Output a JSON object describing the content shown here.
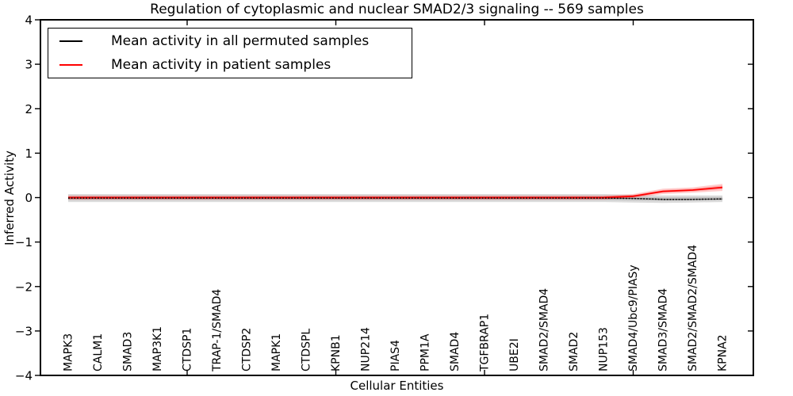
{
  "chart_data": {
    "type": "line",
    "title": "Regulation of cytoplasmic and nuclear SMAD2/3 signaling -- 569 samples",
    "xlabel": "Cellular Entities",
    "ylabel": "Inferred Activity",
    "ylim": [
      -4,
      4
    ],
    "yticks": [
      4,
      3,
      2,
      1,
      0,
      -1,
      -2,
      -3,
      -4
    ],
    "grid": false,
    "legend_position": "upper left",
    "top_axis_tick_indices": [
      4,
      9,
      14,
      19
    ],
    "categories": [
      "MAPK3",
      "CALM1",
      "SMAD3",
      "MAP3K1",
      "CTDSP1",
      "TRAP-1/SMAD4",
      "CTDSP2",
      "MAPK1",
      "CTDSPL",
      "KPNB1",
      "NUP214",
      "PIAS4",
      "PPM1A",
      "SMAD4",
      "TGFBRAP1",
      "UBE2I",
      "SMAD2/SMAD4",
      "SMAD2",
      "NUP153",
      "SMAD4/Ubc9/PIASy",
      "SMAD3/SMAD4",
      "SMAD2/SMAD2/SMAD4",
      "KPNA2"
    ],
    "series": [
      {
        "name": "Mean activity in all permuted samples",
        "color": "#000000",
        "style": "dotted",
        "band_color": "rgba(128,128,128,0.28)",
        "values": [
          -0.01,
          -0.01,
          -0.01,
          -0.01,
          -0.01,
          -0.01,
          -0.01,
          -0.01,
          -0.01,
          -0.01,
          -0.01,
          -0.01,
          -0.01,
          -0.01,
          -0.01,
          -0.01,
          -0.01,
          -0.01,
          -0.01,
          -0.02,
          -0.04,
          -0.04,
          -0.03
        ],
        "band_upper": [
          0.08,
          0.08,
          0.08,
          0.08,
          0.08,
          0.08,
          0.08,
          0.08,
          0.08,
          0.08,
          0.08,
          0.08,
          0.08,
          0.08,
          0.08,
          0.08,
          0.08,
          0.08,
          0.08,
          0.06,
          0.05,
          0.05,
          0.05
        ],
        "band_lower": [
          -0.1,
          -0.1,
          -0.1,
          -0.1,
          -0.1,
          -0.1,
          -0.1,
          -0.1,
          -0.1,
          -0.1,
          -0.1,
          -0.1,
          -0.1,
          -0.1,
          -0.1,
          -0.1,
          -0.1,
          -0.1,
          -0.1,
          -0.11,
          -0.12,
          -0.11,
          -0.1
        ]
      },
      {
        "name": "Mean activity in patient samples",
        "color": "#ff0000",
        "style": "solid",
        "band_color": "rgba(255,0,0,0.20)",
        "values": [
          0.0,
          0.0,
          0.0,
          0.0,
          0.0,
          0.0,
          0.0,
          0.0,
          0.0,
          0.0,
          0.0,
          0.0,
          0.0,
          0.0,
          0.0,
          0.0,
          0.0,
          0.0,
          0.0,
          0.03,
          0.14,
          0.17,
          0.23
        ],
        "band_upper": [
          0.05,
          0.05,
          0.05,
          0.05,
          0.05,
          0.05,
          0.05,
          0.05,
          0.05,
          0.05,
          0.05,
          0.05,
          0.05,
          0.05,
          0.05,
          0.05,
          0.05,
          0.05,
          0.05,
          0.08,
          0.2,
          0.23,
          0.31
        ],
        "band_lower": [
          -0.05,
          -0.05,
          -0.05,
          -0.05,
          -0.05,
          -0.05,
          -0.05,
          -0.05,
          -0.05,
          -0.05,
          -0.05,
          -0.05,
          -0.05,
          -0.05,
          -0.05,
          -0.05,
          -0.05,
          -0.05,
          -0.05,
          -0.01,
          0.08,
          0.11,
          0.15
        ]
      }
    ]
  }
}
